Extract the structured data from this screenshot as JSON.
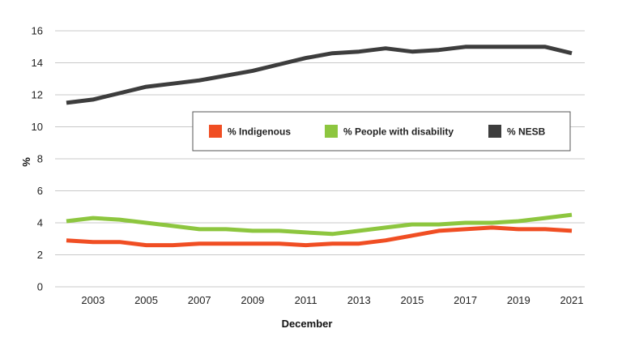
{
  "chart_data": {
    "type": "line",
    "title": "",
    "xlabel": "December",
    "ylabel": "%",
    "ylim": [
      0,
      16
    ],
    "yticks": [
      0,
      2,
      4,
      6,
      8,
      10,
      12,
      14,
      16
    ],
    "xticks": [
      2003,
      2005,
      2007,
      2009,
      2011,
      2013,
      2015,
      2017,
      2019,
      2021
    ],
    "xlim": [
      2002,
      2021
    ],
    "grid": "horizontal",
    "legend_position": "center",
    "x": [
      2002,
      2003,
      2004,
      2005,
      2006,
      2007,
      2008,
      2009,
      2010,
      2011,
      2012,
      2013,
      2014,
      2015,
      2016,
      2017,
      2018,
      2019,
      2020,
      2021
    ],
    "series": [
      {
        "name": "% Indigenous",
        "color": "#f04e23",
        "values": [
          2.9,
          2.8,
          2.8,
          2.6,
          2.6,
          2.7,
          2.7,
          2.7,
          2.7,
          2.6,
          2.7,
          2.7,
          2.9,
          3.2,
          3.5,
          3.6,
          3.7,
          3.6,
          3.6,
          3.5
        ]
      },
      {
        "name": "% People with disability",
        "color": "#8dc63f",
        "values": [
          4.1,
          4.3,
          4.2,
          4.0,
          3.8,
          3.6,
          3.6,
          3.5,
          3.5,
          3.4,
          3.3,
          3.5,
          3.7,
          3.9,
          3.9,
          4.0,
          4.0,
          4.1,
          4.3,
          4.5
        ]
      },
      {
        "name": "% NESB",
        "color": "#3d3d3d",
        "values": [
          11.5,
          11.7,
          12.1,
          12.5,
          12.7,
          12.9,
          13.2,
          13.5,
          13.9,
          14.3,
          14.6,
          14.7,
          14.9,
          14.7,
          14.8,
          15.0,
          15.0,
          15.0,
          15.0,
          14.6
        ]
      }
    ]
  }
}
